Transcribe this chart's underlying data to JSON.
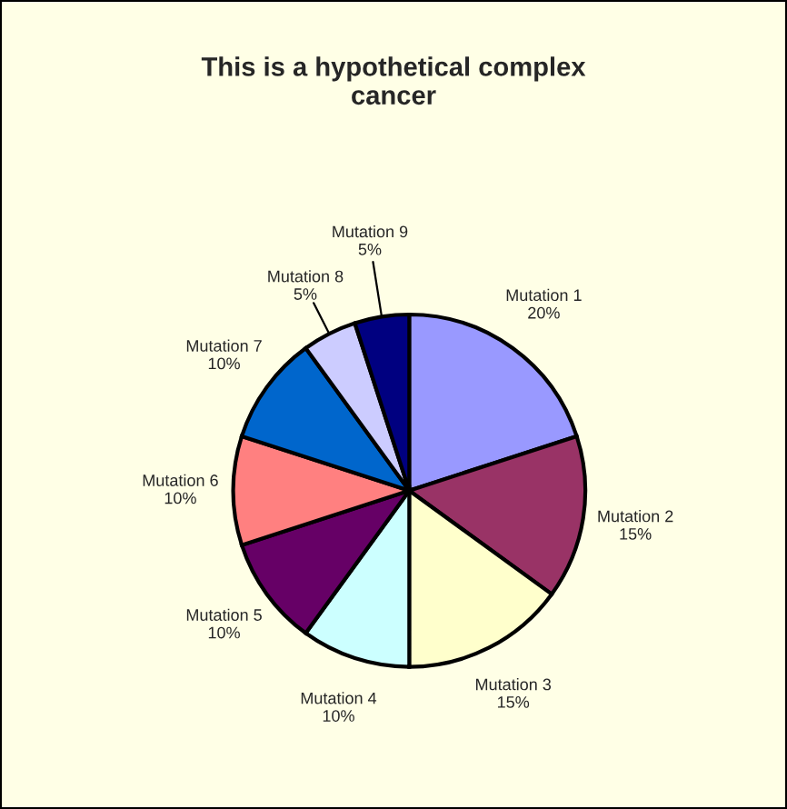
{
  "chart_data": {
    "type": "pie",
    "title": "This is a hypothetical complex cancer",
    "categories": [
      "Mutation 1",
      "Mutation 2",
      "Mutation 3",
      "Mutation 4",
      "Mutation 5",
      "Mutation 6",
      "Mutation 7",
      "Mutation 8",
      "Mutation 9"
    ],
    "values": [
      20,
      15,
      15,
      10,
      10,
      10,
      10,
      5,
      5
    ],
    "value_labels": [
      "20%",
      "15%",
      "15%",
      "10%",
      "10%",
      "10%",
      "10%",
      "5%",
      "5%"
    ],
    "colors": [
      "#9999ff",
      "#993366",
      "#ffffcc",
      "#ccffff",
      "#660066",
      "#ff8080",
      "#0066cc",
      "#ccccff",
      "#000080"
    ],
    "legend": false
  }
}
